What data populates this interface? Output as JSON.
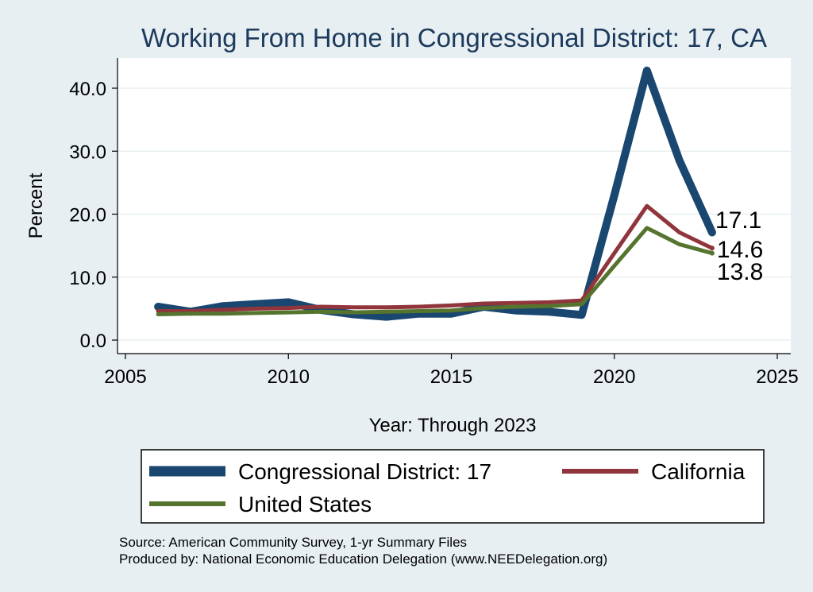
{
  "chart_data": {
    "type": "line",
    "title": "Working From Home in Congressional District: 17, CA",
    "xlabel": "Year: Through 2023",
    "ylabel": "Percent",
    "xlim": [
      2005,
      2025
    ],
    "ylim": [
      0,
      40
    ],
    "xticks": [
      2005,
      2010,
      2015,
      2020,
      2025
    ],
    "yticks": [
      0,
      10,
      20,
      30,
      40
    ],
    "ytick_labels": [
      "0.0",
      "10.0",
      "20.0",
      "30.0",
      "40.0"
    ],
    "grid": true,
    "legend_position": "bottom",
    "x": [
      2006,
      2007,
      2008,
      2009,
      2010,
      2011,
      2012,
      2013,
      2014,
      2015,
      2016,
      2017,
      2018,
      2019,
      2020,
      2021,
      2022,
      2023
    ],
    "series": [
      {
        "name": "Congressional District: 17",
        "color": "#1a476f",
        "values": [
          5.3,
          4.5,
          5.4,
          5.7,
          6.0,
          4.8,
          4.1,
          3.7,
          4.2,
          4.2,
          5.3,
          4.7,
          4.5,
          4.0,
          23.0,
          42.8,
          28.5,
          17.1
        ],
        "end_label": "17.1"
      },
      {
        "name": "California",
        "color": "#90353b",
        "values": [
          4.6,
          4.6,
          4.8,
          5.0,
          5.1,
          5.3,
          5.2,
          5.2,
          5.3,
          5.5,
          5.8,
          5.9,
          6.0,
          6.3,
          13.8,
          21.3,
          17.1,
          14.6
        ],
        "end_label": "14.6"
      },
      {
        "name": "United States",
        "color": "#55752f",
        "values": [
          4.1,
          4.2,
          4.2,
          4.3,
          4.4,
          4.5,
          4.4,
          4.5,
          4.6,
          4.7,
          5.1,
          5.3,
          5.4,
          5.7,
          11.8,
          17.8,
          15.2,
          13.8
        ],
        "end_label": "13.8"
      }
    ]
  },
  "footer": {
    "source_line": "Source: American Community Survey, 1-yr Summary Files",
    "produced_line": "Produced by: National Economic Education Delegation (www.NEEDelegation.org)"
  }
}
